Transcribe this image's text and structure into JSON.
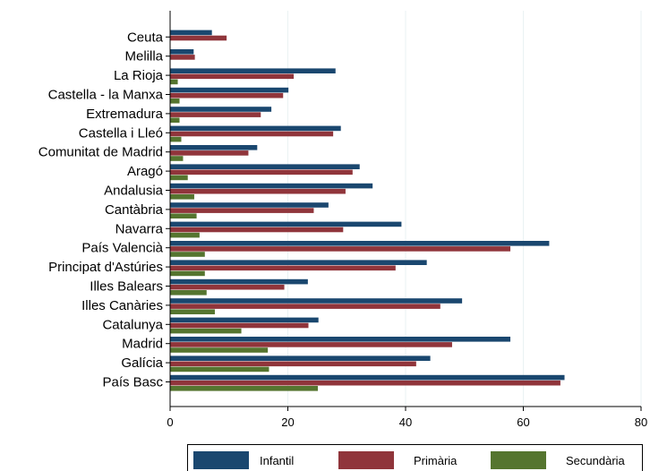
{
  "chart_data": {
    "type": "bar",
    "orientation": "horizontal",
    "categories": [
      "Ceuta",
      "Melilla",
      "La Rioja",
      "Castella - la Manxa",
      "Extremadura",
      "Castella i Lleó",
      "Comunitat de Madrid",
      "Aragó",
      "Andalusia",
      "Cantàbria",
      "Navarra",
      "País Valencià",
      "Principat d'Astúries",
      "Illes Balears",
      "Illes Canàries",
      "Catalunya",
      "Madrid",
      "Galícia",
      "País Basc"
    ],
    "series": [
      {
        "name": "Infantil",
        "color": "#1a476f",
        "values": [
          7.1,
          4.0,
          28.1,
          20.1,
          17.2,
          29.0,
          14.8,
          32.2,
          34.4,
          26.9,
          39.3,
          64.4,
          43.6,
          23.4,
          49.6,
          25.2,
          57.8,
          44.2,
          67.0
        ]
      },
      {
        "name": "Primària",
        "color": "#90353b",
        "values": [
          9.6,
          4.2,
          21.0,
          19.2,
          15.4,
          27.7,
          13.3,
          31.0,
          29.8,
          24.4,
          29.4,
          57.8,
          38.3,
          19.4,
          45.9,
          23.5,
          47.9,
          41.8,
          66.3
        ]
      },
      {
        "name": "Secundària",
        "color": "#55752f",
        "values": [
          null,
          null,
          1.3,
          1.6,
          1.6,
          1.9,
          2.2,
          3.0,
          4.1,
          4.5,
          5.0,
          5.9,
          5.9,
          6.2,
          7.6,
          12.1,
          16.6,
          16.8,
          25.1
        ]
      }
    ],
    "xlim": [
      0,
      80
    ],
    "xticks": [
      "0",
      "20",
      "40",
      "60",
      "80"
    ],
    "grid": true,
    "legend_position": "bottom"
  }
}
